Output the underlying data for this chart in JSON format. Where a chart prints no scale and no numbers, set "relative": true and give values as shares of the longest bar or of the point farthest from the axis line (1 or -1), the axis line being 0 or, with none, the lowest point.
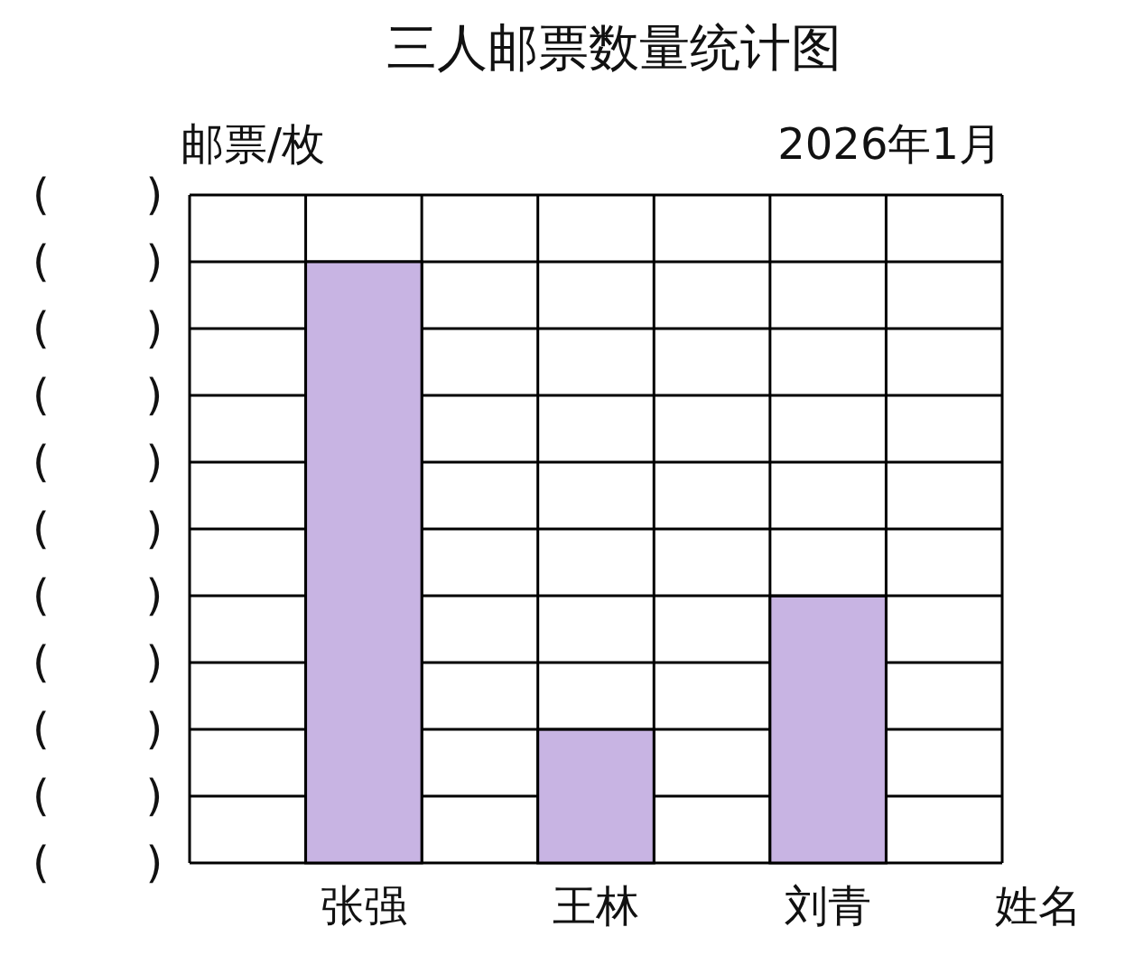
{
  "chart_data": {
    "type": "bar",
    "title": "三人邮票数量统计图",
    "subtitle": "2026年1月",
    "ylabel": "邮票/枚",
    "xlabel": "姓名",
    "categories": [
      null,
      "张强",
      null,
      "王林",
      null,
      "刘青",
      null
    ],
    "values": [
      null,
      1,
      null,
      0.222,
      null,
      0.444,
      null
    ],
    "color": "#c8b4e3",
    "relative": true,
    "grid": true,
    "annotations": [
      "(       )",
      "(       )",
      "(       )",
      "(       )",
      "(       )",
      "(       )",
      "(       )",
      "(       )",
      "(       )",
      "(       )",
      "(       )"
    ]
  }
}
